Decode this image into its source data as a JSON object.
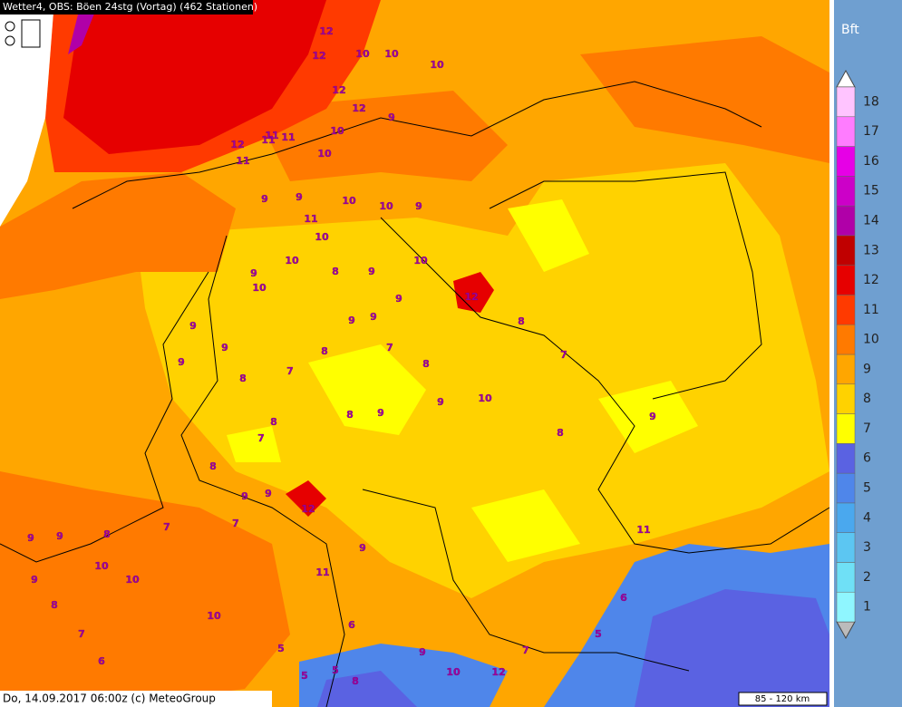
{
  "header": {
    "title": "Wetter4, OBS: Böen 24stg (Vortag) (462 Stationen)"
  },
  "footer": {
    "text": "Do, 14.09.2017 06:00z (c) MeteoGroup",
    "scale": "85 - 120 km"
  },
  "legend": {
    "title": "Bft",
    "levels": [
      {
        "value": 1,
        "color": "#8ff6ff"
      },
      {
        "value": 2,
        "color": "#6fe0f6"
      },
      {
        "value": 3,
        "color": "#5cc6f2"
      },
      {
        "value": 4,
        "color": "#4aa8ee"
      },
      {
        "value": 5,
        "color": "#4f86ea"
      },
      {
        "value": 6,
        "color": "#5a62e2"
      },
      {
        "value": 7,
        "color": "#ffff00"
      },
      {
        "value": 8,
        "color": "#ffd200"
      },
      {
        "value": 9,
        "color": "#ffa600"
      },
      {
        "value": 10,
        "color": "#ff7a00"
      },
      {
        "value": 11,
        "color": "#ff3a00"
      },
      {
        "value": 12,
        "color": "#e60000"
      },
      {
        "value": 13,
        "color": "#c00000"
      },
      {
        "value": 14,
        "color": "#b000a8"
      },
      {
        "value": 15,
        "color": "#cc00c8"
      },
      {
        "value": 16,
        "color": "#e600e6"
      },
      {
        "value": 17,
        "color": "#ff7cff"
      },
      {
        "value": 18,
        "color": "#ffc4ff"
      }
    ]
  },
  "stations": [
    12,
    12,
    10,
    10,
    10,
    12,
    12,
    11,
    10,
    9,
    10,
    11,
    11,
    11,
    12,
    10,
    10,
    9,
    9,
    9,
    10,
    11,
    10,
    9,
    10,
    12,
    9,
    8,
    10,
    9,
    9,
    9,
    7,
    7,
    8,
    9,
    9,
    9,
    8,
    8,
    10,
    9,
    8,
    7,
    9,
    8,
    12,
    9,
    9,
    8,
    7,
    7,
    8,
    9,
    10,
    10,
    9,
    9,
    8,
    7,
    6,
    5,
    5,
    5,
    6,
    9,
    11,
    10,
    8,
    9,
    11,
    8,
    9,
    7,
    6,
    7,
    5,
    12,
    10,
    8
  ]
}
